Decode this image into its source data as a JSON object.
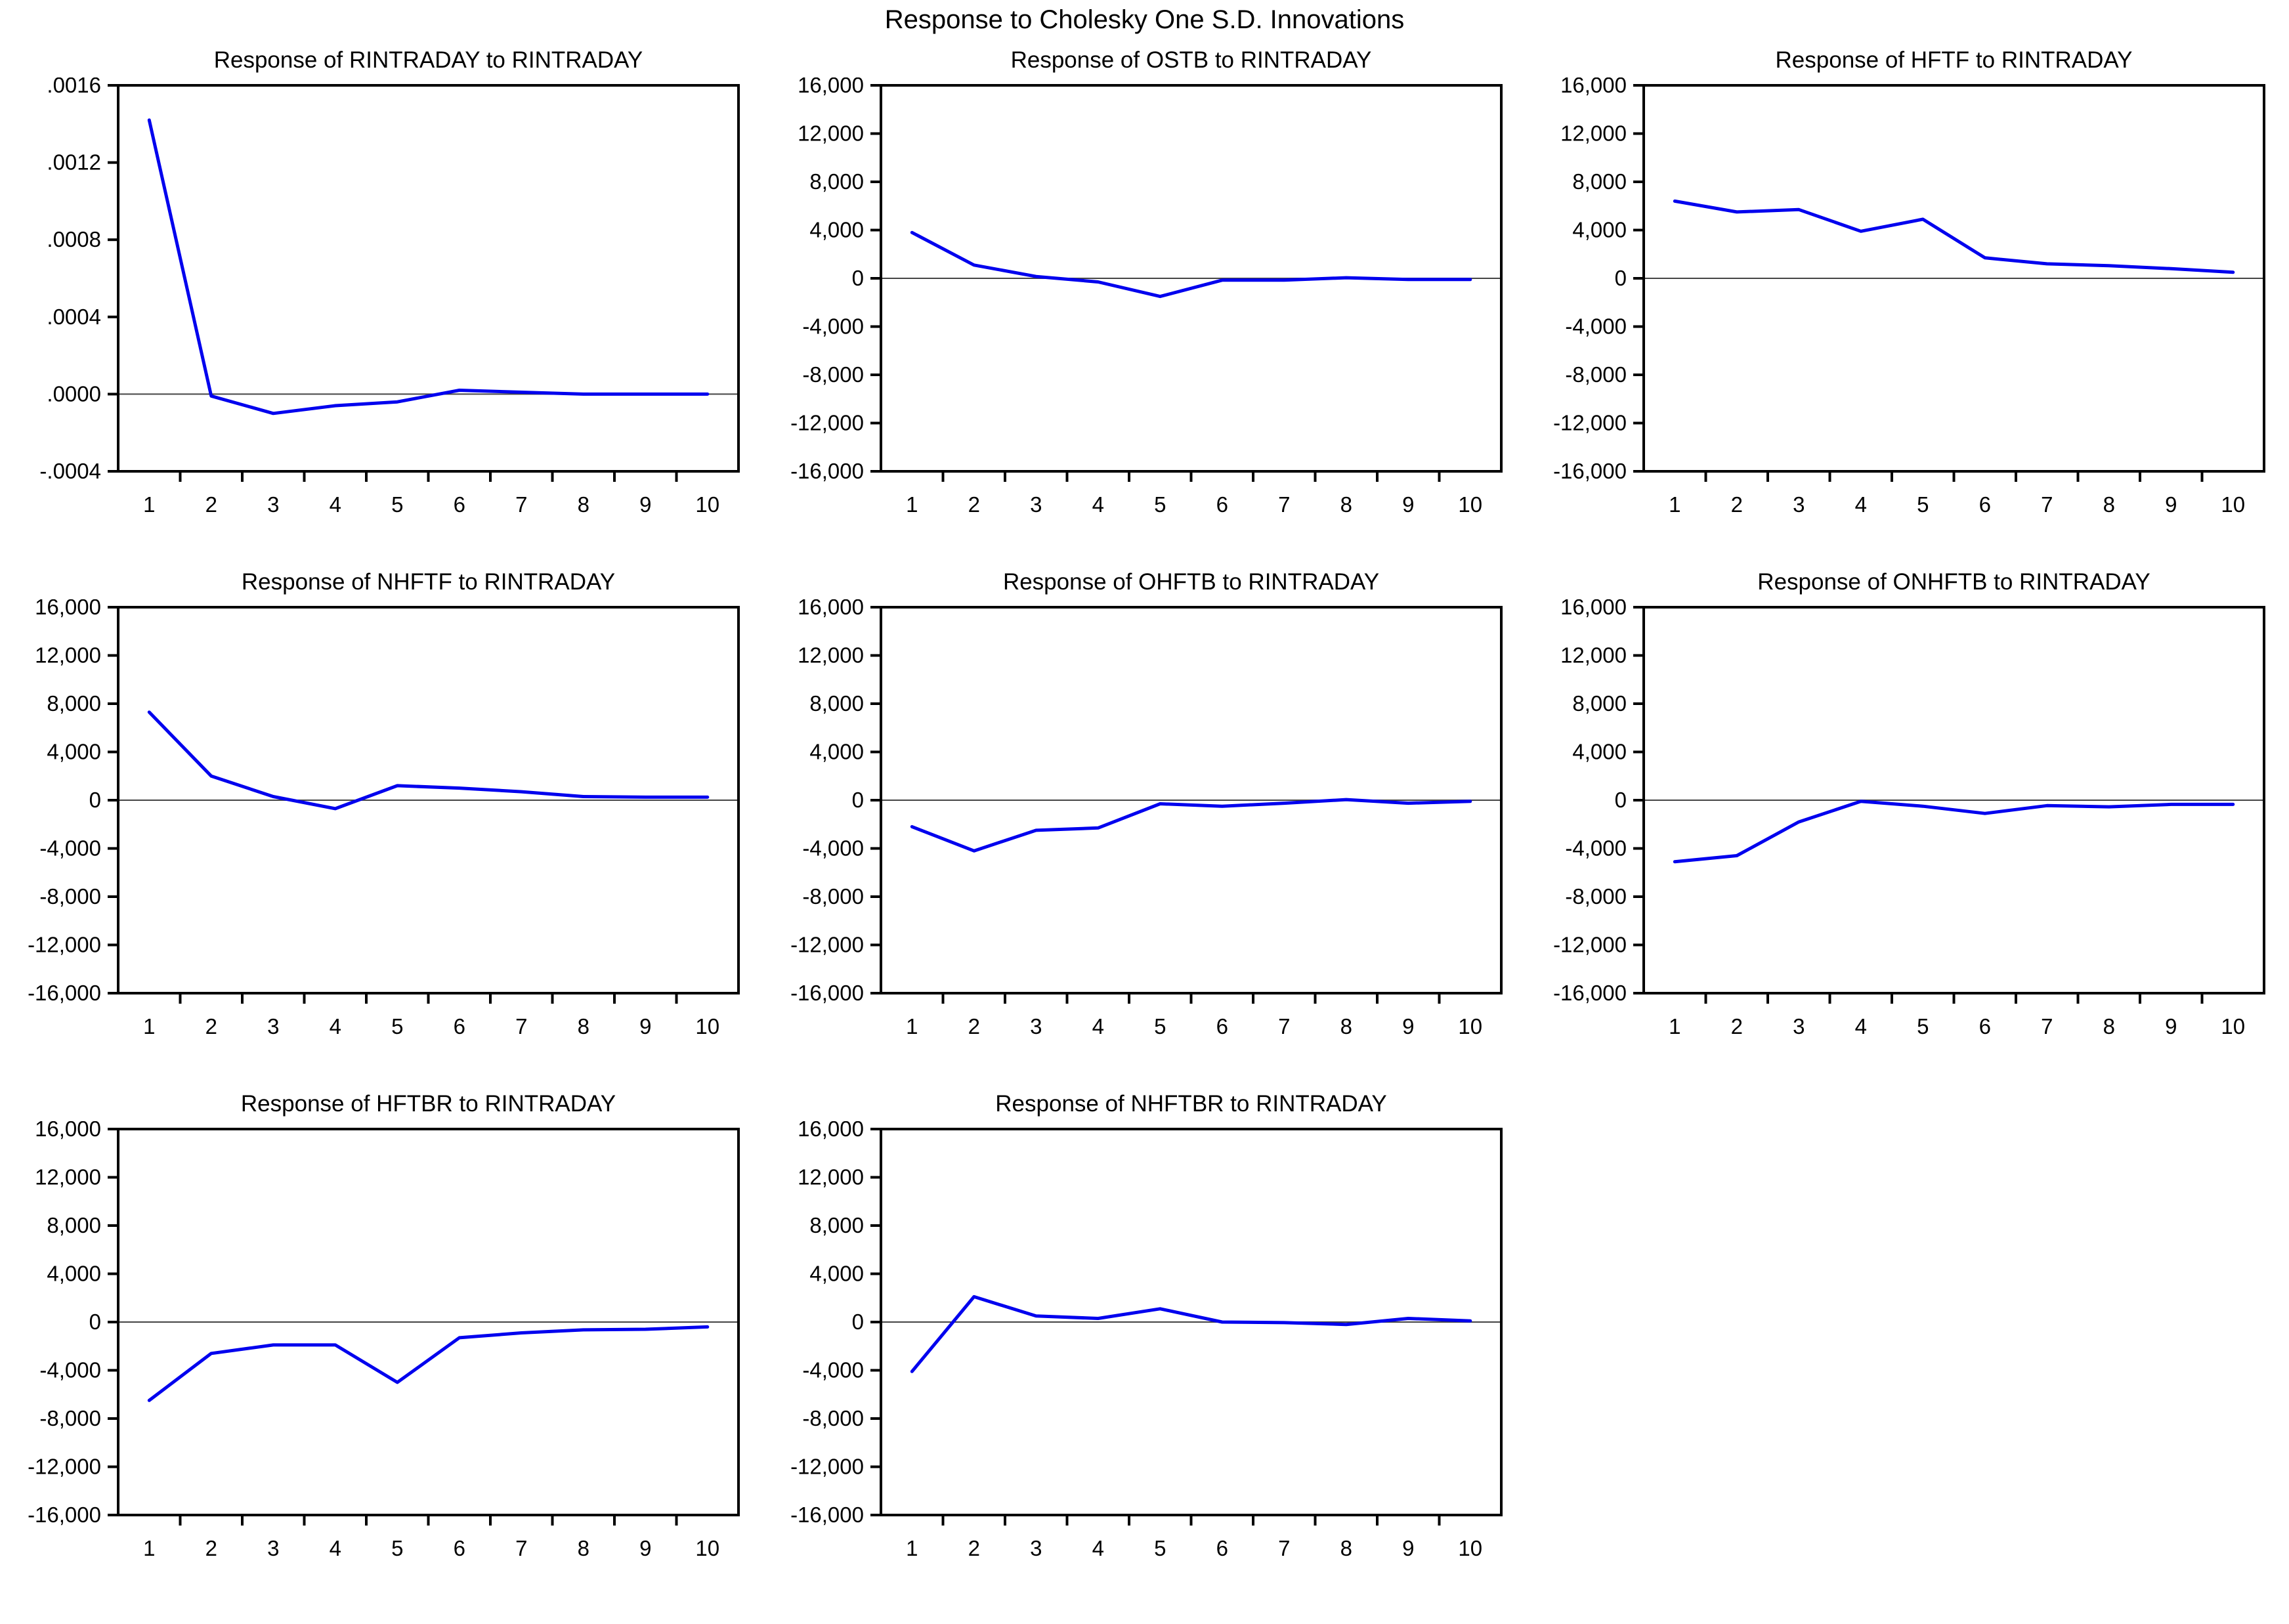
{
  "main_title": "Response to Cholesky One S.D. Innovations",
  "line_color": "#0000EE",
  "axis_color": "#000000",
  "zero_line_color": "#444444",
  "chart_data": [
    {
      "type": "line",
      "title": "Response of RINTRADAY to RINTRADAY",
      "x": [
        1,
        2,
        3,
        4,
        5,
        6,
        7,
        8,
        9,
        10
      ],
      "x_labels": [
        "1",
        "2",
        "3",
        "4",
        "5",
        "6",
        "7",
        "8",
        "9",
        "10"
      ],
      "values": [
        0.00142,
        -1e-05,
        -0.0001,
        -6e-05,
        -4e-05,
        2e-05,
        1e-05,
        0.0,
        0.0,
        0.0
      ],
      "ylim": [
        -0.0004,
        0.0016
      ],
      "yticks": [
        0.0016,
        0.0012,
        0.0008,
        0.0004,
        0.0,
        -0.0004
      ],
      "ytick_labels": [
        ".0016",
        ".0012",
        ".0008",
        ".0004",
        ".0000",
        "-.0004"
      ],
      "grid": "off",
      "legend": "none"
    },
    {
      "type": "line",
      "title": "Response of OSTB to RINTRADAY",
      "x": [
        1,
        2,
        3,
        4,
        5,
        6,
        7,
        8,
        9,
        10
      ],
      "x_labels": [
        "1",
        "2",
        "3",
        "4",
        "5",
        "6",
        "7",
        "8",
        "9",
        "10"
      ],
      "values": [
        3800,
        1100,
        150,
        -300,
        -1500,
        -150,
        -150,
        50,
        -100,
        -100
      ],
      "ylim": [
        -16000,
        16000
      ],
      "yticks": [
        16000,
        12000,
        8000,
        4000,
        0,
        -4000,
        -8000,
        -12000,
        -16000
      ],
      "ytick_labels": [
        "16,000",
        "12,000",
        "8,000",
        "4,000",
        "0",
        "-4,000",
        "-8,000",
        "-12,000",
        "-16,000"
      ],
      "grid": "off",
      "legend": "none"
    },
    {
      "type": "line",
      "title": "Response of HFTF to RINTRADAY",
      "x": [
        1,
        2,
        3,
        4,
        5,
        6,
        7,
        8,
        9,
        10
      ],
      "x_labels": [
        "1",
        "2",
        "3",
        "4",
        "5",
        "6",
        "7",
        "8",
        "9",
        "10"
      ],
      "values": [
        6400,
        5500,
        5700,
        3900,
        4900,
        1700,
        1200,
        1050,
        800,
        500
      ],
      "ylim": [
        -16000,
        16000
      ],
      "yticks": [
        16000,
        12000,
        8000,
        4000,
        0,
        -4000,
        -8000,
        -12000,
        -16000
      ],
      "ytick_labels": [
        "16,000",
        "12,000",
        "8,000",
        "4,000",
        "0",
        "-4,000",
        "-8,000",
        "-12,000",
        "-16,000"
      ],
      "grid": "off",
      "legend": "none"
    },
    {
      "type": "line",
      "title": "Response of NHFTF to RINTRADAY",
      "x": [
        1,
        2,
        3,
        4,
        5,
        6,
        7,
        8,
        9,
        10
      ],
      "x_labels": [
        "1",
        "2",
        "3",
        "4",
        "5",
        "6",
        "7",
        "8",
        "9",
        "10"
      ],
      "values": [
        7300,
        2000,
        300,
        -700,
        1200,
        1000,
        700,
        300,
        250,
        250
      ],
      "ylim": [
        -16000,
        16000
      ],
      "yticks": [
        16000,
        12000,
        8000,
        4000,
        0,
        -4000,
        -8000,
        -12000,
        -16000
      ],
      "ytick_labels": [
        "16,000",
        "12,000",
        "8,000",
        "4,000",
        "0",
        "-4,000",
        "-8,000",
        "-12,000",
        "-16,000"
      ],
      "grid": "off",
      "legend": "none"
    },
    {
      "type": "line",
      "title": "Response of OHFTB to RINTRADAY",
      "x": [
        1,
        2,
        3,
        4,
        5,
        6,
        7,
        8,
        9,
        10
      ],
      "x_labels": [
        "1",
        "2",
        "3",
        "4",
        "5",
        "6",
        "7",
        "8",
        "9",
        "10"
      ],
      "values": [
        -2200,
        -4200,
        -2500,
        -2300,
        -300,
        -500,
        -250,
        50,
        -250,
        -100
      ],
      "ylim": [
        -16000,
        16000
      ],
      "yticks": [
        16000,
        12000,
        8000,
        4000,
        0,
        -4000,
        -8000,
        -12000,
        -16000
      ],
      "ytick_labels": [
        "16,000",
        "12,000",
        "8,000",
        "4,000",
        "0",
        "-4,000",
        "-8,000",
        "-12,000",
        "-16,000"
      ],
      "grid": "off",
      "legend": "none"
    },
    {
      "type": "line",
      "title": "Response of ONHFTB to RINTRADAY",
      "x": [
        1,
        2,
        3,
        4,
        5,
        6,
        7,
        8,
        9,
        10
      ],
      "x_labels": [
        "1",
        "2",
        "3",
        "4",
        "5",
        "6",
        "7",
        "8",
        "9",
        "10"
      ],
      "values": [
        -5100,
        -4600,
        -1800,
        -100,
        -500,
        -1100,
        -450,
        -550,
        -350,
        -350
      ],
      "ylim": [
        -16000,
        16000
      ],
      "yticks": [
        16000,
        12000,
        8000,
        4000,
        0,
        -4000,
        -8000,
        -12000,
        -16000
      ],
      "ytick_labels": [
        "16,000",
        "12,000",
        "8,000",
        "4,000",
        "0",
        "-4,000",
        "-8,000",
        "-12,000",
        "-16,000"
      ],
      "grid": "off",
      "legend": "none"
    },
    {
      "type": "line",
      "title": "Response of HFTBR to RINTRADAY",
      "x": [
        1,
        2,
        3,
        4,
        5,
        6,
        7,
        8,
        9,
        10
      ],
      "x_labels": [
        "1",
        "2",
        "3",
        "4",
        "5",
        "6",
        "7",
        "8",
        "9",
        "10"
      ],
      "values": [
        -6500,
        -2600,
        -1900,
        -1900,
        -5000,
        -1300,
        -900,
        -650,
        -600,
        -400
      ],
      "ylim": [
        -16000,
        16000
      ],
      "yticks": [
        16000,
        12000,
        8000,
        4000,
        0,
        -4000,
        -8000,
        -12000,
        -16000
      ],
      "ytick_labels": [
        "16,000",
        "12,000",
        "8,000",
        "4,000",
        "0",
        "-4,000",
        "-8,000",
        "-12,000",
        "-16,000"
      ],
      "grid": "off",
      "legend": "none"
    },
    {
      "type": "line",
      "title": "Response of NHFTBR to RINTRADAY",
      "x": [
        1,
        2,
        3,
        4,
        5,
        6,
        7,
        8,
        9,
        10
      ],
      "x_labels": [
        "1",
        "2",
        "3",
        "4",
        "5",
        "6",
        "7",
        "8",
        "9",
        "10"
      ],
      "values": [
        -4100,
        2100,
        500,
        300,
        1100,
        0,
        -50,
        -200,
        300,
        100
      ],
      "ylim": [
        -16000,
        16000
      ],
      "yticks": [
        16000,
        12000,
        8000,
        4000,
        0,
        -4000,
        -8000,
        -12000,
        -16000
      ],
      "ytick_labels": [
        "16,000",
        "12,000",
        "8,000",
        "4,000",
        "0",
        "-4,000",
        "-8,000",
        "-12,000",
        "-16,000"
      ],
      "grid": "off",
      "legend": "none"
    }
  ]
}
